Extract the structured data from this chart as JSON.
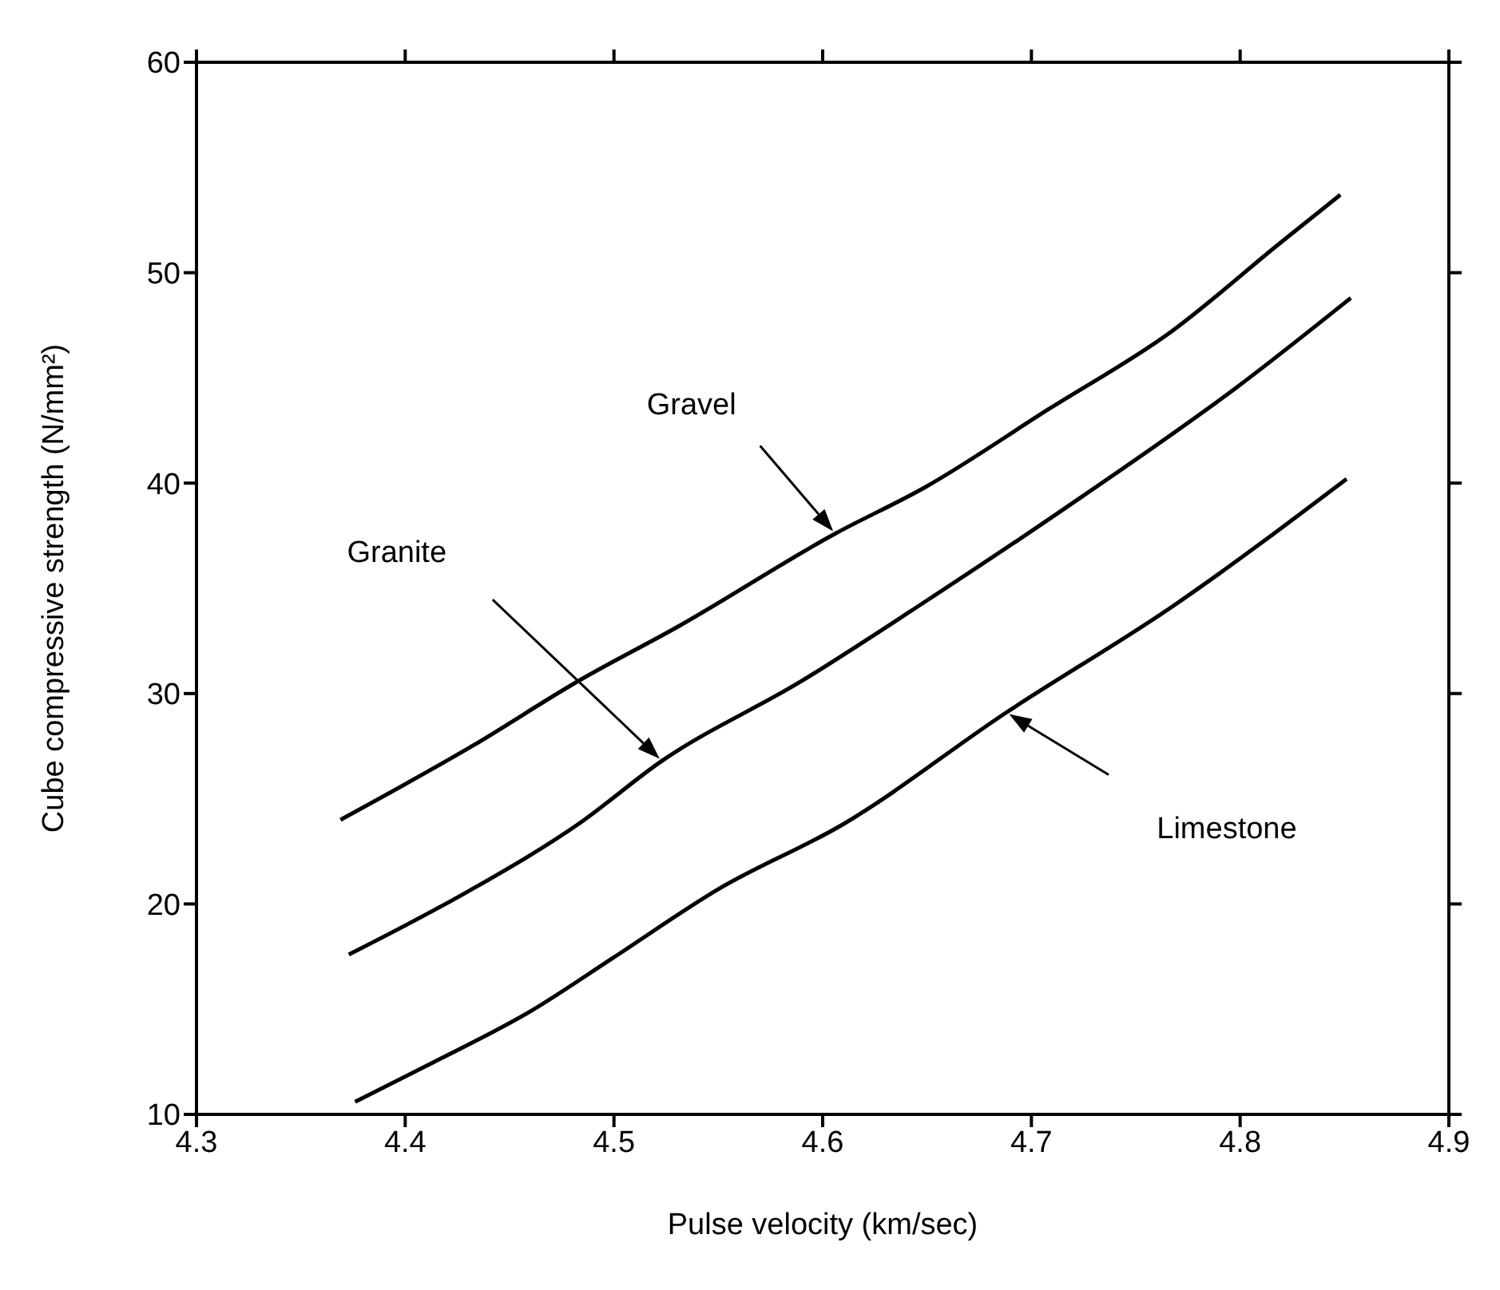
{
  "chart_data": {
    "type": "line",
    "xlabel": "Pulse velocity (km/sec)",
    "ylabel": "Cube compressive strength (N/mm²)",
    "xlim": [
      4.3,
      4.9
    ],
    "xticks": [
      4.3,
      4.4,
      4.5,
      4.6,
      4.7,
      4.8,
      4.9
    ],
    "ylim": [
      10,
      60
    ],
    "yticks": [
      10,
      20,
      30,
      40,
      50,
      60
    ],
    "grid": false,
    "legend": false,
    "marker": "none",
    "line_style": "solid",
    "series": [
      {
        "color": "#000000",
        "x": [
          4.369,
          4.432,
          4.483,
          4.531,
          4.606,
          4.649,
          4.708,
          4.767,
          4.819,
          4.848
        ],
        "values": [
          24.0,
          27.5,
          30.6,
          33.2,
          37.6,
          39.8,
          43.5,
          47.2,
          51.4,
          53.7
        ]
      },
      {
        "color": "#000000",
        "x": [
          4.373,
          4.432,
          4.483,
          4.523,
          4.59,
          4.645,
          4.716,
          4.799,
          4.853
        ],
        "values": [
          17.6,
          20.7,
          23.8,
          26.8,
          30.6,
          34.1,
          38.8,
          44.6,
          48.8
        ]
      },
      {
        "color": "#000000",
        "x": [
          4.376,
          4.412,
          4.46,
          4.499,
          4.55,
          4.61,
          4.688,
          4.767,
          4.851
        ],
        "values": [
          10.6,
          12.4,
          14.9,
          17.4,
          20.7,
          23.8,
          29.1,
          34.1,
          40.2
        ]
      }
    ],
    "annotations": [
      "Gravel",
      "Granite",
      "Limestone"
    ]
  }
}
